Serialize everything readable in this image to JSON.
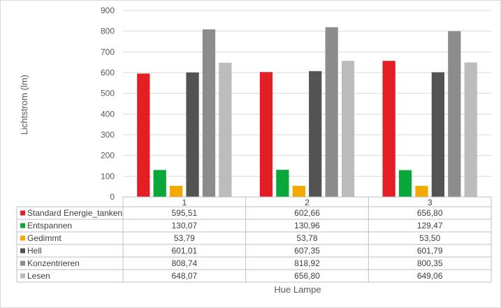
{
  "chart_data": {
    "type": "bar",
    "xlabel": "Hue Lampe",
    "ylabel": "Lichtstrom (lm)",
    "ylim": [
      0,
      900
    ],
    "ytick_step": 100,
    "categories": [
      "1",
      "2",
      "3"
    ],
    "legend": "table-left",
    "grid": true,
    "series": [
      {
        "name": "Standard Energie_tanken",
        "color": "#e31e24",
        "values": [
          595.51,
          602.66,
          656.8
        ],
        "labels": [
          "595,51",
          "602,66",
          "656,80"
        ]
      },
      {
        "name": "Entspannen",
        "color": "#0aa83b",
        "values": [
          130.07,
          130.96,
          129.47
        ],
        "labels": [
          "130,07",
          "130,96",
          "129,47"
        ]
      },
      {
        "name": "Gedimmt",
        "color": "#f2a900",
        "values": [
          53.79,
          53.78,
          53.5
        ],
        "labels": [
          "53,79",
          "53,78",
          "53,50"
        ]
      },
      {
        "name": "Hell",
        "color": "#535353",
        "values": [
          601.01,
          607.35,
          601.79
        ],
        "labels": [
          "601,01",
          "607,35",
          "601,79"
        ]
      },
      {
        "name": "Konzentrieren",
        "color": "#8c8c8c",
        "values": [
          808.74,
          818.92,
          800.35
        ],
        "labels": [
          "808,74",
          "818,92",
          "800,35"
        ]
      },
      {
        "name": "Lesen",
        "color": "#bcbcbc",
        "values": [
          648.07,
          656.8,
          649.06
        ],
        "labels": [
          "648,07",
          "656,80",
          "649,06"
        ]
      }
    ]
  }
}
